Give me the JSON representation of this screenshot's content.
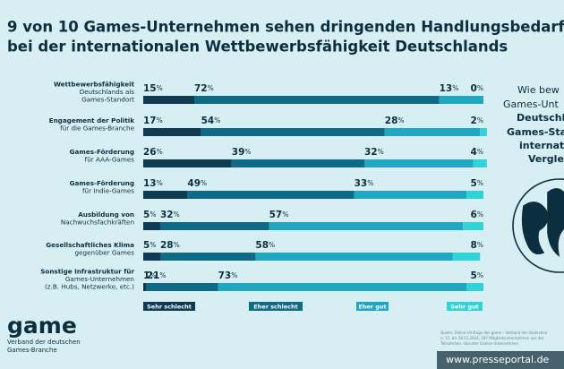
{
  "chart_data": {
    "type": "bar",
    "orientation": "horizontal",
    "stacked": true,
    "title": [
      "9 von 10 Games-Unternehmen sehen dringenden Handlungsbedarf",
      "bei der internationalen Wettbewerbsfähigkeit Deutschlands"
    ],
    "categories": [
      [
        "Wettbewerbsfähigkeit",
        "Deutschlands als",
        "Games-Standort"
      ],
      [
        "Engagement der Politik",
        "für die Games-Branche"
      ],
      [
        "Games-Förderung",
        "für AAA-Games"
      ],
      [
        "Games-Förderung",
        "für Indie-Games"
      ],
      [
        "Ausbildung von",
        "Nachwuchsfachkräften"
      ],
      [
        "Gesellschaftliches Klima",
        "gegenüber Games"
      ],
      [
        "Sonstige Infrastruktur für",
        "Games-Unternehmen",
        "(z.B. Hubs, Netzwerke, etc.)"
      ]
    ],
    "xlim": [
      0,
      100
    ],
    "series": [
      {
        "name": "Sehr schlecht",
        "color": "#0e3a52",
        "values": [
          15,
          17,
          26,
          13,
          5,
          5,
          1
        ],
        "value_labels": [
          "15%",
          "17%",
          "26%",
          "13%",
          "5%",
          "5%",
          "1%"
        ]
      },
      {
        "name": "Eher schlecht",
        "color": "#0f6a85",
        "values": [
          72,
          54,
          39,
          49,
          32,
          28,
          21
        ],
        "value_labels": [
          "72%",
          "54%",
          "39%",
          "49%",
          "32%",
          "28%",
          "21%"
        ]
      },
      {
        "name": "Eher gut",
        "color": "#1fa6c1",
        "values": [
          13,
          28,
          32,
          33,
          57,
          58,
          73
        ],
        "value_labels": [
          "13%",
          "28%",
          "32%",
          "33%",
          "57%",
          "58%",
          "73%"
        ]
      },
      {
        "name": "Sehr gut",
        "color": "#2fd3d8",
        "values": [
          0,
          2,
          4,
          5,
          6,
          8,
          5
        ],
        "value_labels": [
          "0%",
          "2%",
          "4%",
          "5%",
          "6%",
          "8%",
          "5%"
        ]
      }
    ]
  },
  "side_text": [
    "Wie bew",
    "Games-Unt",
    "Deutschl",
    "Games-Sta",
    "internat",
    "Vergle"
  ],
  "logo": {
    "name": "game",
    "subtitle": [
      "Verband der deutschen",
      "Games-Branche"
    ]
  },
  "source": [
    "Quelle: Online-Umfrage des game – Verband der deutschen",
    "n: 11. bis 18.11.2024; 187 Mitgliedsunternehmen aus der",
    "Teilnahmen, darunter Games-Unternehmen"
  ],
  "watermark": "www.presseportal.de"
}
